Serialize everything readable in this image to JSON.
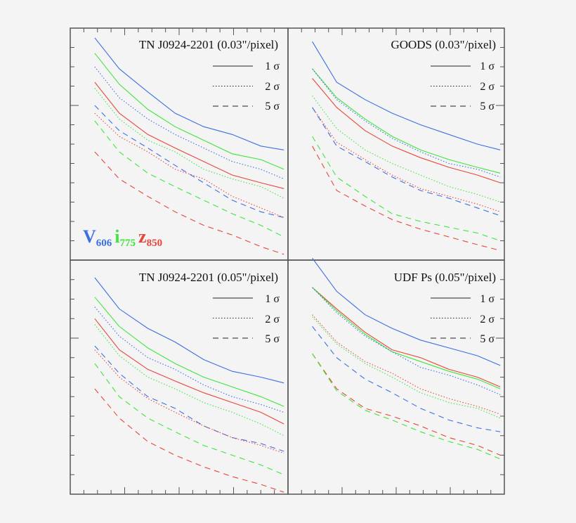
{
  "colors": {
    "V606": "#3b6fe6",
    "i775": "#3ee63a",
    "z850": "#e8463a",
    "frame": "#555555",
    "background": "#f4f4f4"
  },
  "band_labels": [
    {
      "main": "V",
      "sub": "606",
      "color": "#3b6fe6"
    },
    {
      "main": "i",
      "sub": "775",
      "color": "#3ee63a"
    },
    {
      "main": "z",
      "sub": "850",
      "color": "#e8463a"
    }
  ],
  "legend": [
    {
      "label": "1 σ",
      "style": "solid"
    },
    {
      "label": "2 σ",
      "style": "dotted"
    },
    {
      "label": "5 σ",
      "style": "dashed"
    }
  ],
  "chart_data": [
    {
      "type": "line",
      "title": "TN J0924-2201 (0.03\"/pixel)",
      "xlim": [
        0,
        16
      ],
      "ylim": [
        0,
        12
      ],
      "grid": false,
      "legend_position": "top-right",
      "x": [
        1.8,
        3.6,
        5.7,
        7.7,
        9.8,
        11.9,
        14.0,
        15.7
      ],
      "series": [
        {
          "band": "V606",
          "sigma": "1 σ",
          "style": "solid",
          "values": [
            11.5,
            9.9,
            8.7,
            7.6,
            6.9,
            6.5,
            5.9,
            5.7
          ]
        },
        {
          "band": "i775",
          "sigma": "1 σ",
          "style": "solid",
          "values": [
            10.7,
            9.1,
            7.8,
            6.9,
            6.2,
            5.5,
            5.2,
            4.7
          ]
        },
        {
          "band": "V606",
          "sigma": "2 σ",
          "style": "dotted",
          "values": [
            10.0,
            8.4,
            7.3,
            6.5,
            5.8,
            5.1,
            4.7,
            4.2
          ]
        },
        {
          "band": "z850",
          "sigma": "1 σ",
          "style": "solid",
          "values": [
            9.2,
            7.6,
            6.5,
            5.8,
            5.1,
            4.4,
            4.0,
            3.7
          ]
        },
        {
          "band": "i775",
          "sigma": "2 σ",
          "style": "dotted",
          "values": [
            8.9,
            7.3,
            6.2,
            5.6,
            4.7,
            4.2,
            3.8,
            3.2
          ]
        },
        {
          "band": "V606",
          "sigma": "5 σ",
          "style": "dashed",
          "values": [
            8.0,
            6.7,
            5.8,
            4.9,
            4.0,
            3.1,
            2.5,
            2.2
          ]
        },
        {
          "band": "z850",
          "sigma": "2 σ",
          "style": "dotted",
          "values": [
            7.6,
            6.4,
            5.6,
            4.7,
            4.2,
            3.3,
            2.7,
            2.2
          ]
        },
        {
          "band": "i775",
          "sigma": "5 σ",
          "style": "dashed",
          "values": [
            7.2,
            5.6,
            4.5,
            3.8,
            3.1,
            2.4,
            1.8,
            1.2
          ]
        },
        {
          "band": "z850",
          "sigma": "5 σ",
          "style": "dashed",
          "values": [
            5.6,
            4.2,
            3.3,
            2.5,
            1.8,
            1.3,
            0.7,
            0.3
          ]
        }
      ]
    },
    {
      "type": "line",
      "title": "GOODS (0.03\"/pixel)",
      "xlim": [
        0,
        16
      ],
      "ylim": [
        0,
        12
      ],
      "grid": false,
      "legend_position": "top-right",
      "x": [
        1.8,
        3.6,
        5.7,
        7.7,
        9.8,
        11.9,
        14.0,
        15.7
      ],
      "series": [
        {
          "band": "V606",
          "sigma": "1 σ",
          "style": "solid",
          "values": [
            11.3,
            9.2,
            8.3,
            7.6,
            7.0,
            6.5,
            6.0,
            5.7
          ]
        },
        {
          "band": "i775",
          "sigma": "1 σ",
          "style": "solid",
          "values": [
            9.9,
            8.4,
            7.3,
            6.4,
            5.7,
            5.2,
            4.8,
            4.5
          ]
        },
        {
          "band": "V606",
          "sigma": "2 σ",
          "style": "dotted",
          "values": [
            9.9,
            8.3,
            7.2,
            6.3,
            5.6,
            5.0,
            4.7,
            4.3
          ]
        },
        {
          "band": "z850",
          "sigma": "1 σ",
          "style": "solid",
          "values": [
            9.4,
            7.9,
            6.7,
            5.9,
            5.3,
            4.8,
            4.4,
            4.0
          ]
        },
        {
          "band": "i775",
          "sigma": "2 σ",
          "style": "dotted",
          "values": [
            8.5,
            6.8,
            5.7,
            5.0,
            4.4,
            3.8,
            3.4,
            3.0
          ]
        },
        {
          "band": "z850",
          "sigma": "2 σ",
          "style": "dotted",
          "values": [
            7.9,
            6.1,
            5.2,
            4.4,
            3.7,
            3.3,
            2.9,
            2.5
          ]
        },
        {
          "band": "V606",
          "sigma": "5 σ",
          "style": "dashed",
          "values": [
            7.9,
            5.9,
            5.1,
            4.3,
            3.6,
            3.2,
            2.7,
            2.3
          ]
        },
        {
          "band": "i775",
          "sigma": "5 σ",
          "style": "dashed",
          "values": [
            6.4,
            4.3,
            3.3,
            2.4,
            2.0,
            1.7,
            1.4,
            1.0
          ]
        },
        {
          "band": "z850",
          "sigma": "5 σ",
          "style": "dashed",
          "values": [
            5.9,
            3.6,
            2.8,
            2.1,
            1.6,
            1.2,
            0.8,
            0.5
          ]
        }
      ]
    },
    {
      "type": "line",
      "title": "TN J0924-2201 (0.05\"/pixel)",
      "xlim": [
        0,
        16
      ],
      "ylim": [
        0,
        12
      ],
      "grid": false,
      "legend_position": "top-right",
      "x": [
        1.8,
        3.6,
        5.7,
        7.7,
        9.8,
        11.9,
        14.0,
        15.7
      ],
      "series": [
        {
          "band": "V606",
          "sigma": "1 σ",
          "style": "solid",
          "values": [
            11.1,
            9.5,
            8.5,
            7.8,
            6.9,
            6.3,
            6.0,
            5.7
          ]
        },
        {
          "band": "i775",
          "sigma": "1 σ",
          "style": "solid",
          "values": [
            10.1,
            8.6,
            7.5,
            6.7,
            6.0,
            5.5,
            5.0,
            4.5
          ]
        },
        {
          "band": "V606",
          "sigma": "2 σ",
          "style": "dotted",
          "values": [
            9.6,
            8.1,
            7.0,
            6.4,
            5.6,
            5.0,
            4.6,
            4.2
          ]
        },
        {
          "band": "z850",
          "sigma": "1 σ",
          "style": "solid",
          "values": [
            9.0,
            7.4,
            6.4,
            5.8,
            5.2,
            4.7,
            4.2,
            3.6
          ]
        },
        {
          "band": "i775",
          "sigma": "2 σ",
          "style": "dotted",
          "values": [
            8.7,
            7.1,
            6.0,
            5.4,
            4.7,
            4.2,
            3.6,
            3.0
          ]
        },
        {
          "band": "V606",
          "sigma": "5 σ",
          "style": "dashed",
          "values": [
            7.6,
            6.2,
            5.0,
            4.4,
            3.5,
            2.9,
            2.6,
            2.2
          ]
        },
        {
          "band": "z850",
          "sigma": "2 σ",
          "style": "dotted",
          "values": [
            7.4,
            6.0,
            4.9,
            4.2,
            3.5,
            2.9,
            2.5,
            2.1
          ]
        },
        {
          "band": "i775",
          "sigma": "5 σ",
          "style": "dashed",
          "values": [
            6.7,
            5.0,
            3.9,
            3.2,
            2.5,
            2.0,
            1.5,
            1.0
          ]
        },
        {
          "band": "z850",
          "sigma": "5 σ",
          "style": "dashed",
          "values": [
            5.4,
            3.9,
            2.7,
            2.0,
            1.4,
            0.9,
            0.5,
            0.1
          ]
        }
      ]
    },
    {
      "type": "line",
      "title": "UDF Ps (0.05\"/pixel)",
      "xlim": [
        0,
        16
      ],
      "ylim": [
        0,
        12
      ],
      "grid": false,
      "legend_position": "top-right",
      "x": [
        1.8,
        3.6,
        5.7,
        7.7,
        9.8,
        11.9,
        14.0,
        15.7
      ],
      "series": [
        {
          "band": "V606",
          "sigma": "1 σ",
          "style": "solid",
          "values": [
            12.1,
            10.4,
            9.2,
            8.5,
            7.9,
            7.5,
            7.1,
            6.6
          ]
        },
        {
          "band": "z850",
          "sigma": "1 σ",
          "style": "solid",
          "values": [
            10.6,
            9.5,
            8.3,
            7.4,
            7.0,
            6.4,
            6.0,
            5.5
          ]
        },
        {
          "band": "i775",
          "sigma": "1 σ",
          "style": "solid",
          "values": [
            10.6,
            9.4,
            8.2,
            7.3,
            6.8,
            6.3,
            5.9,
            5.4
          ]
        },
        {
          "band": "V606",
          "sigma": "2 σ",
          "style": "dotted",
          "values": [
            10.6,
            9.3,
            8.1,
            7.3,
            6.5,
            6.1,
            5.6,
            5.1
          ]
        },
        {
          "band": "z850",
          "sigma": "2 σ",
          "style": "dotted",
          "values": [
            9.2,
            7.8,
            6.8,
            6.2,
            5.4,
            4.9,
            4.5,
            4.1
          ]
        },
        {
          "band": "i775",
          "sigma": "2 σ",
          "style": "dotted",
          "values": [
            9.1,
            7.7,
            6.7,
            6.0,
            5.2,
            4.7,
            4.4,
            3.9
          ]
        },
        {
          "band": "V606",
          "sigma": "5 σ",
          "style": "dashed",
          "values": [
            8.6,
            7.0,
            5.9,
            5.2,
            4.4,
            3.8,
            3.4,
            3.2
          ]
        },
        {
          "band": "z850",
          "sigma": "5 σ",
          "style": "dashed",
          "values": [
            7.2,
            5.4,
            4.4,
            4.0,
            3.5,
            2.9,
            2.5,
            2.0
          ]
        },
        {
          "band": "i775",
          "sigma": "5 σ",
          "style": "dashed",
          "values": [
            7.2,
            5.3,
            4.3,
            3.8,
            3.2,
            2.7,
            2.3,
            1.8
          ]
        }
      ]
    }
  ]
}
